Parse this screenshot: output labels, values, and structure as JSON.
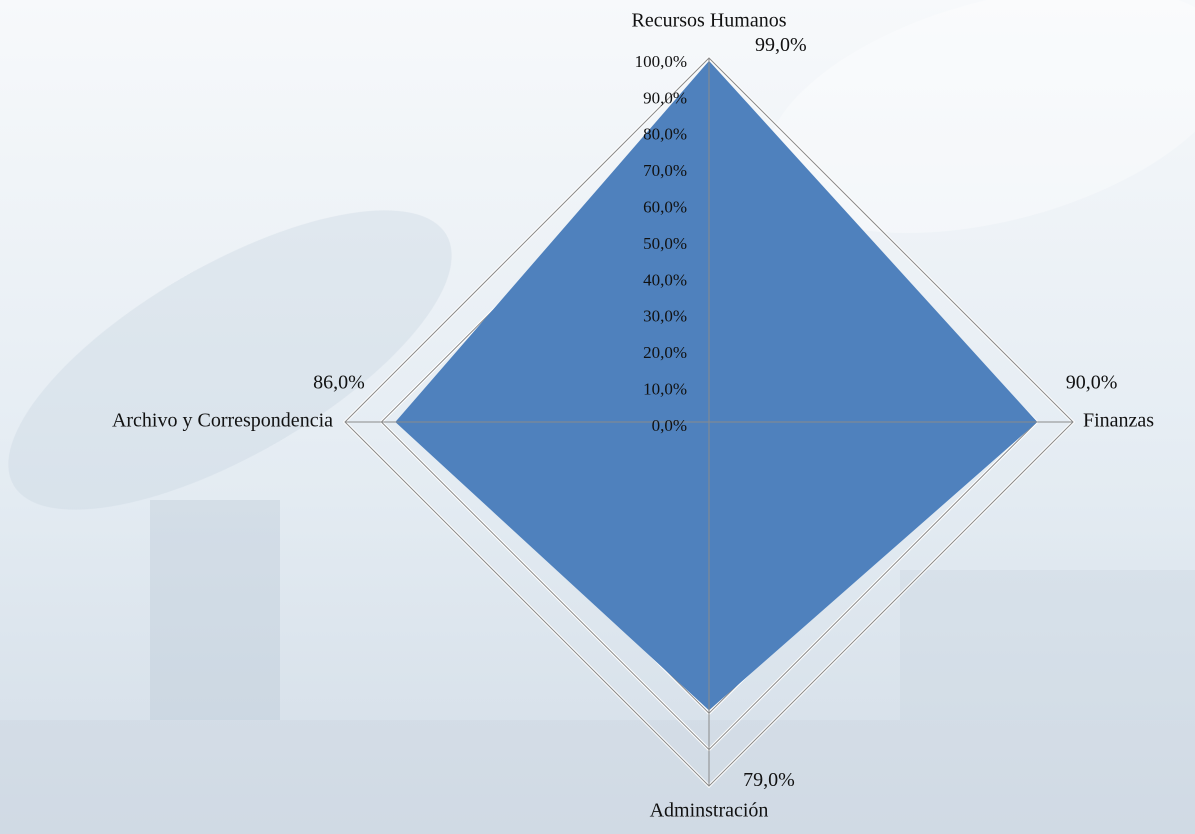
{
  "chart_data": {
    "type": "radar",
    "categories": [
      "Recursos Humanos",
      "Finanzas",
      "Adminstración",
      "Archivo y Correspondencia"
    ],
    "values": [
      99,
      90,
      79,
      86
    ],
    "value_labels": [
      "99,0%",
      "90,0%",
      "79,0%",
      "86,0%"
    ],
    "color": "#4f81bd",
    "ylim": [
      0,
      100
    ],
    "yticks": [
      {
        "value": 0,
        "label": "0,0%"
      },
      {
        "value": 10,
        "label": "10,0%"
      },
      {
        "value": 20,
        "label": "20,0%"
      },
      {
        "value": 30,
        "label": "30,0%"
      },
      {
        "value": 40,
        "label": "40,0%"
      },
      {
        "value": 50,
        "label": "50,0%"
      },
      {
        "value": 60,
        "label": "60,0%"
      },
      {
        "value": 70,
        "label": "70,0%"
      },
      {
        "value": 80,
        "label": "80,0%"
      },
      {
        "value": 90,
        "label": "90,0%"
      },
      {
        "value": 100,
        "label": "100,0%"
      }
    ],
    "grid": true
  }
}
